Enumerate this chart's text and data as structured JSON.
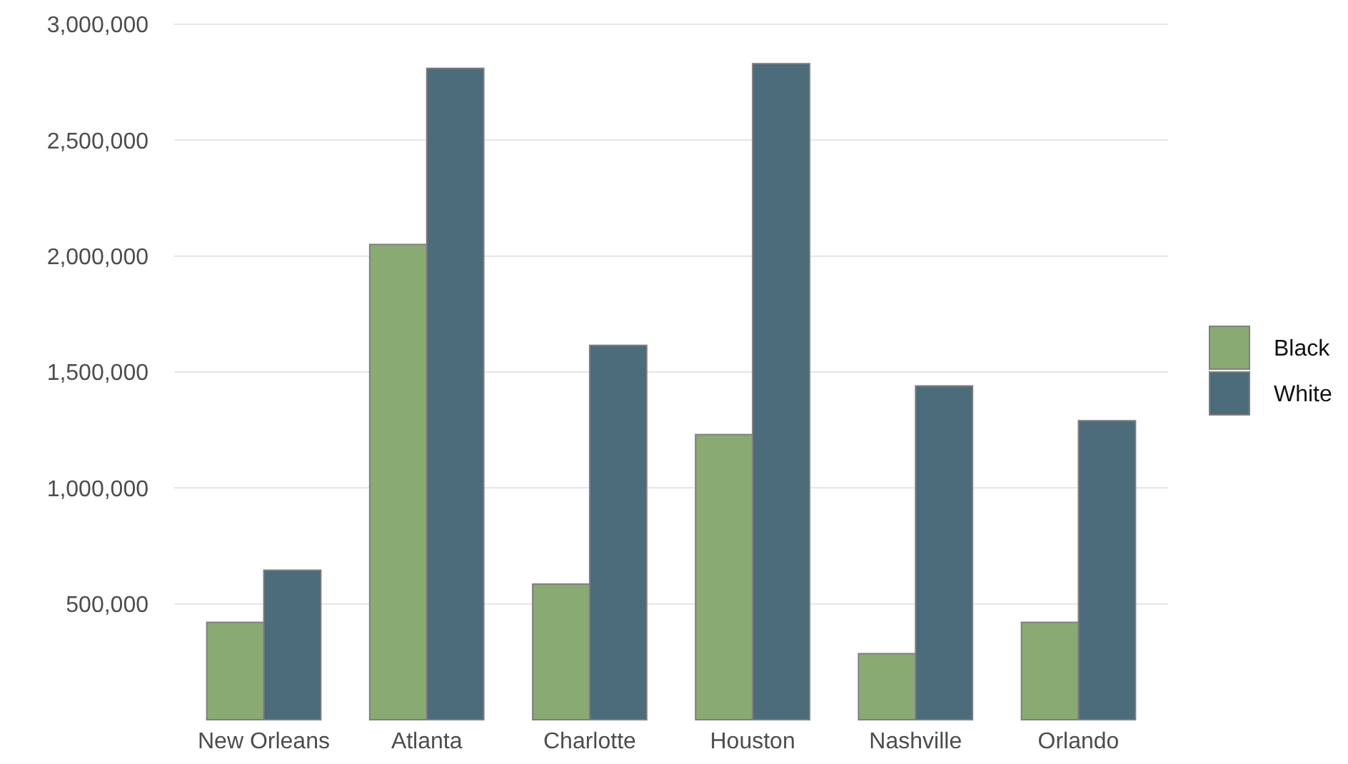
{
  "chart_data": {
    "type": "bar",
    "categories": [
      "New Orleans",
      "Atlanta",
      "Charlotte",
      "Houston",
      "Nashville",
      "Orlando"
    ],
    "series": [
      {
        "name": "Black",
        "color": "#8aaa74",
        "values": [
          420000,
          2050000,
          585000,
          1230000,
          285000,
          420000
        ]
      },
      {
        "name": "White",
        "color": "#4c6b7b",
        "values": [
          645000,
          2810000,
          1615000,
          2830000,
          1440000,
          1290000
        ]
      }
    ],
    "ylim": [
      0,
      3000000
    ],
    "yticks": [
      {
        "value": 500000,
        "label": "500,000"
      },
      {
        "value": 1000000,
        "label": "1,000,000"
      },
      {
        "value": 1500000,
        "label": "1,500,000"
      },
      {
        "value": 2000000,
        "label": "2,000,000"
      },
      {
        "value": 2500000,
        "label": "2,500,000"
      },
      {
        "value": 3000000,
        "label": "3,000,000"
      }
    ],
    "grid": "y",
    "legend": "right"
  }
}
